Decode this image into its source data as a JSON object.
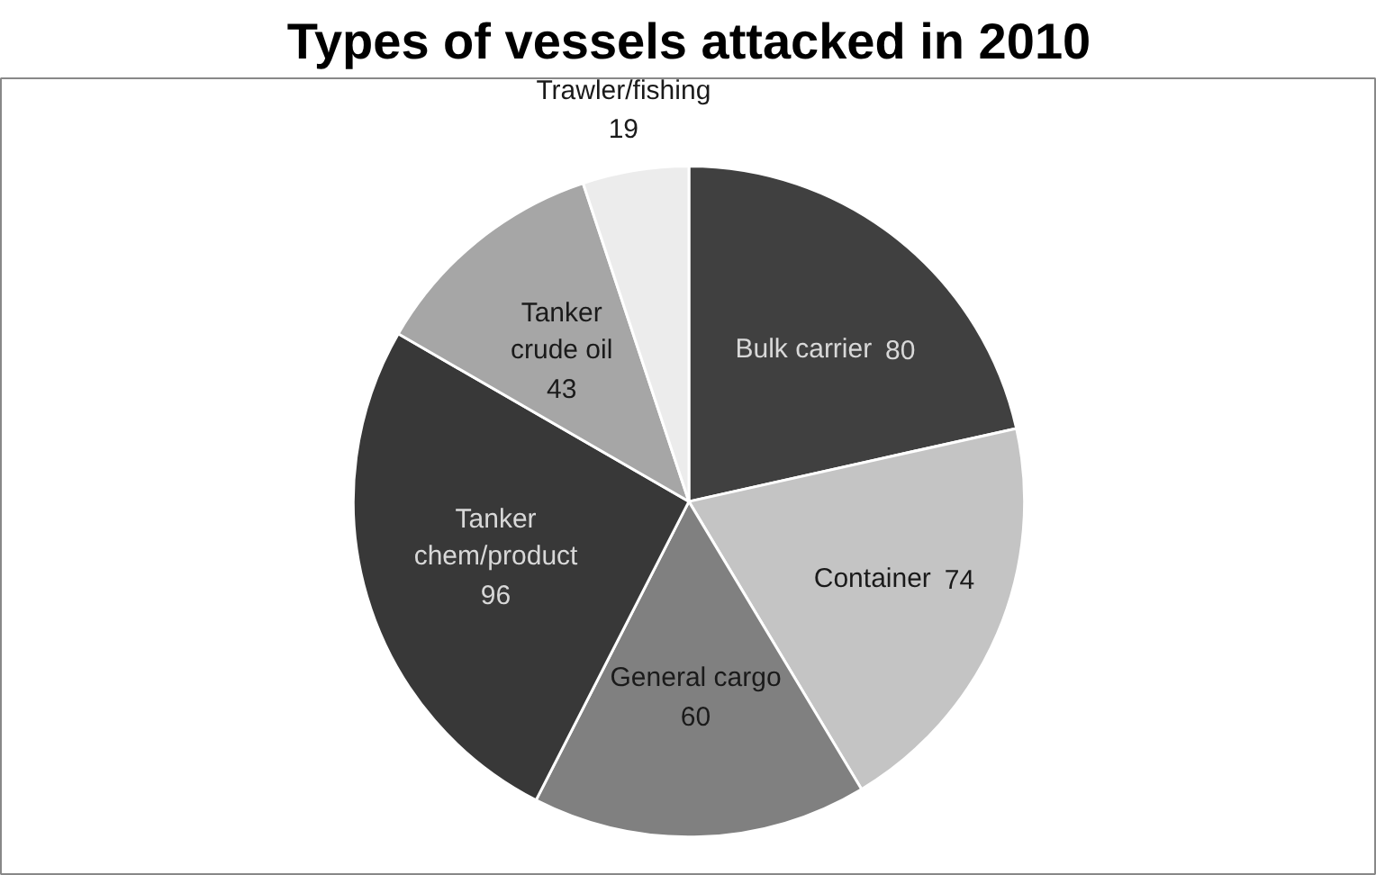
{
  "chart_data": {
    "type": "pie",
    "title": "Types of vessels attacked in 2010",
    "categories": [
      "Bulk carrier",
      "Container",
      "General cargo",
      "Tanker chem/product",
      "Tanker crude oil",
      "Trawler/fishing"
    ],
    "values": [
      80,
      74,
      60,
      96,
      43,
      19
    ],
    "colors": [
      "#404040",
      "#c4c4c4",
      "#808080",
      "#383838",
      "#a6a6a6",
      "#ececec"
    ],
    "data_labels": true
  }
}
